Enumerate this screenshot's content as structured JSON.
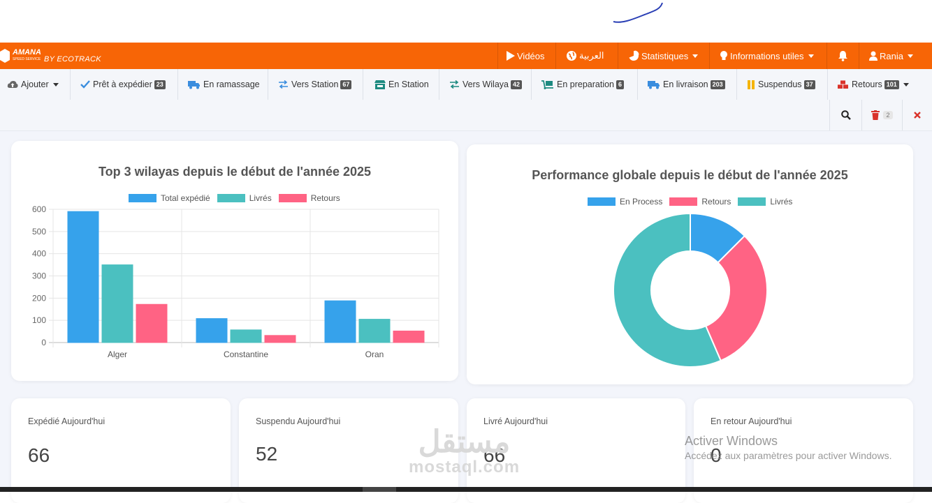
{
  "topbar": {
    "brand": "AMANA",
    "brand_sub": "SPEED SERVICE",
    "by": "BY ECOTRACK",
    "videos": "Vidéos",
    "arabic": "العربية",
    "statistiques": "Statistiques",
    "infos": "Informations utiles",
    "user": "Rania"
  },
  "subnav": {
    "items": [
      {
        "label": "Ajouter",
        "badge": ""
      },
      {
        "label": "Prêt à expédier",
        "badge": "23"
      },
      {
        "label": "En ramassage",
        "badge": ""
      },
      {
        "label": "Vers Station",
        "badge": "67"
      },
      {
        "label": "En Station",
        "badge": ""
      },
      {
        "label": "Vers Wilaya",
        "badge": "42"
      },
      {
        "label": "En preparation",
        "badge": "6"
      },
      {
        "label": "En livraison",
        "badge": "203"
      },
      {
        "label": "Suspendus",
        "badge": "37"
      },
      {
        "label": "Retours",
        "badge": "101"
      }
    ],
    "trash_count": "2"
  },
  "colors": {
    "blue": "#36a2eb",
    "teal": "#4bc0c0",
    "pink": "#ff6384",
    "orange": "#f76506"
  },
  "chart_data": [
    {
      "type": "bar",
      "title": "Top 3 wilayas depuis le début de l'année 2025",
      "categories": [
        "Alger",
        "Constantine",
        "Oran"
      ],
      "series": [
        {
          "name": "Total expédié",
          "color": "#36a2eb",
          "values": [
            590,
            108,
            188
          ]
        },
        {
          "name": "Livrés",
          "color": "#4bc0c0",
          "values": [
            350,
            57,
            105
          ]
        },
        {
          "name": "Retours",
          "color": "#ff6384",
          "values": [
            172,
            32,
            52
          ]
        }
      ],
      "ylim": [
        0,
        600
      ],
      "yticks": [
        "0",
        "100",
        "200",
        "300",
        "400",
        "500",
        "600"
      ],
      "legend": "top",
      "grid": true
    },
    {
      "type": "pie",
      "title": "Performance globale depuis le début de l'année  2025",
      "labels": [
        "En Process",
        "Retours",
        "Livrés"
      ],
      "colors": [
        "#36a2eb",
        "#ff6384",
        "#4bc0c0"
      ],
      "values": [
        12.5,
        31,
        56.5
      ],
      "legend": "top"
    }
  ],
  "stats": [
    {
      "label": "Expédié Aujourd'hui",
      "value": "66"
    },
    {
      "label": "Suspendu Aujourd'hui",
      "value": "52"
    },
    {
      "label": "Livré Aujourd'hui",
      "value": "66"
    },
    {
      "label": "En retour Aujourd'hui",
      "value": "0"
    }
  ],
  "overlay": {
    "activate_title": "Activer Windows",
    "activate_sub": "Accédez aux paramètres pour activer Windows.",
    "wm_ar": "مستقل",
    "wm_en": "mostaql.com"
  }
}
